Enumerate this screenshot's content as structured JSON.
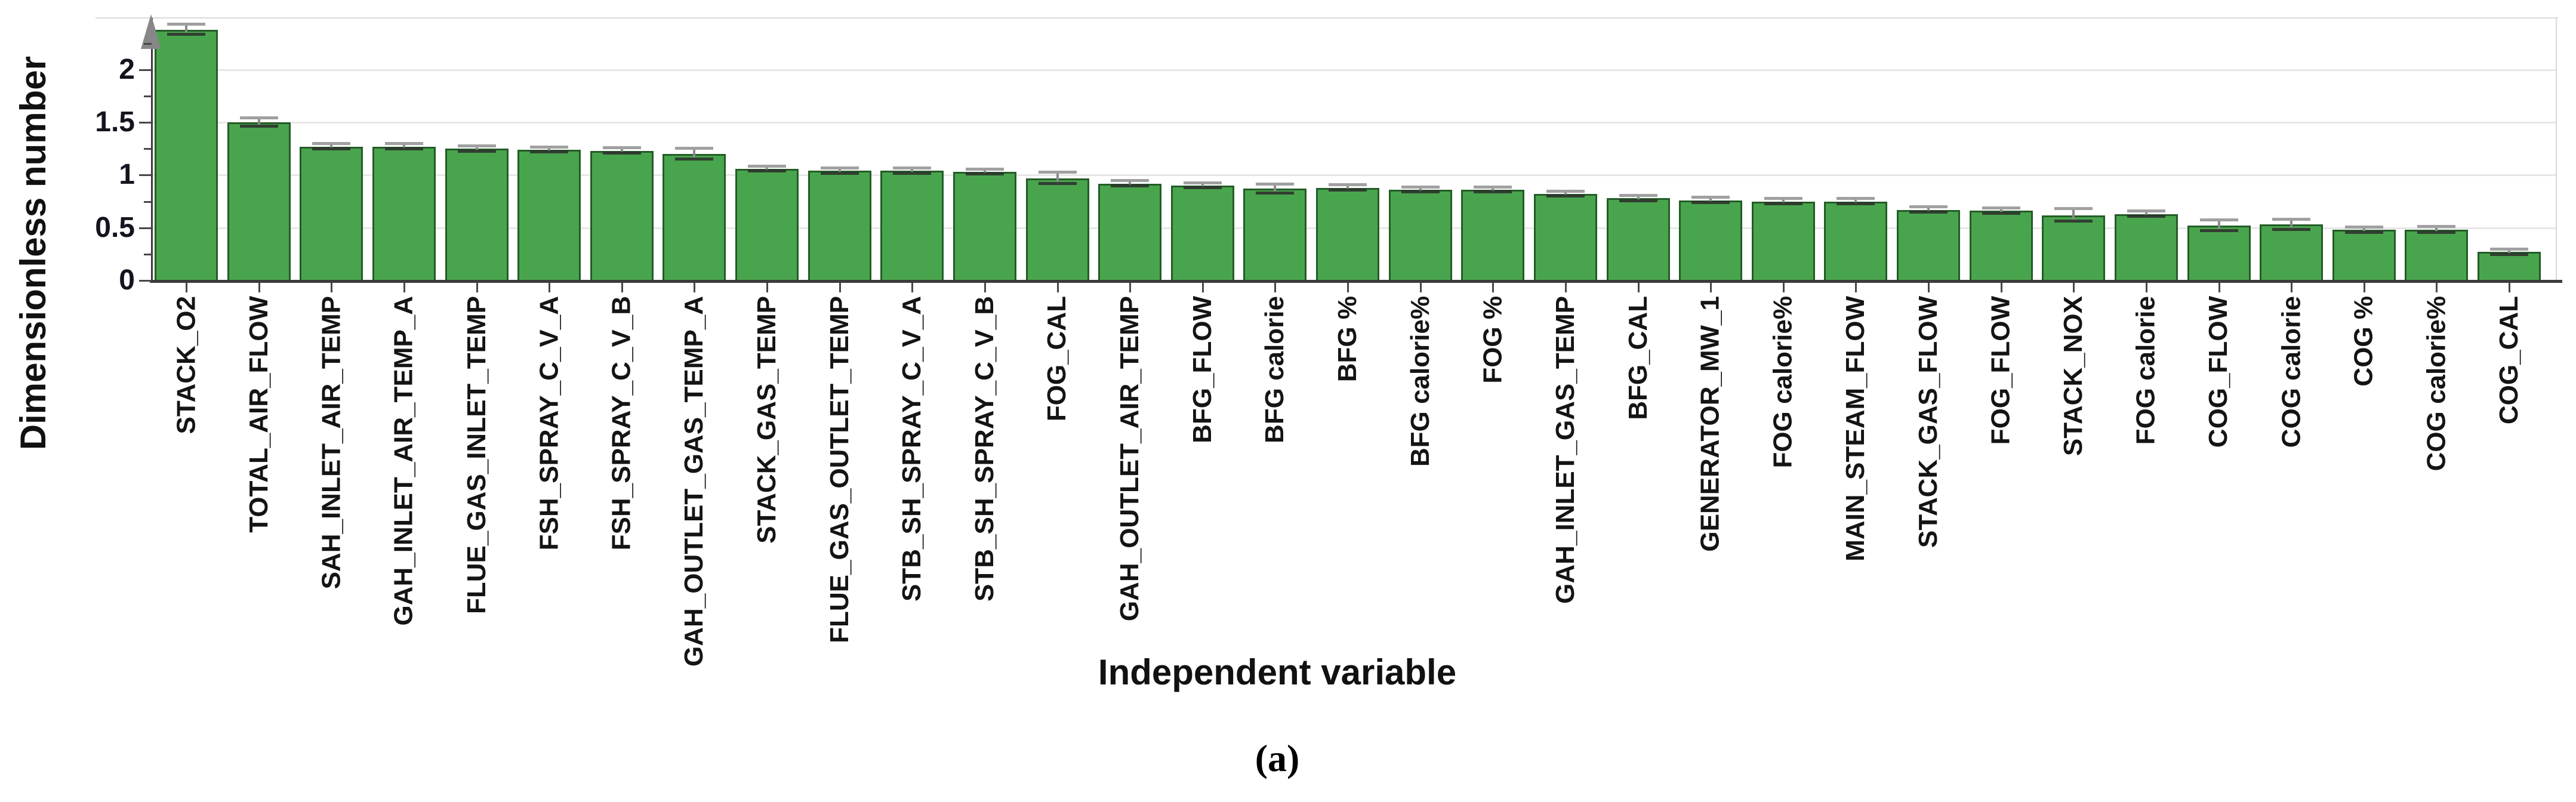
{
  "chart_data": {
    "type": "bar",
    "title": "",
    "xlabel": "Independent variable",
    "ylabel": "Dimensionless number",
    "caption": "(a)",
    "ylim": [
      0,
      2.45
    ],
    "yticks": [
      0,
      0.5,
      1,
      1.5,
      2
    ],
    "ytick_labels": [
      "0",
      "0.5",
      "1",
      "1.5",
      "2"
    ],
    "minor_yticks": [
      0.25,
      0.75,
      1.25,
      1.75,
      2.25
    ],
    "grid": true,
    "legend_position": "none",
    "categories": [
      "STACK_O2",
      "TOTAL_AIR_FLOW",
      "SAH_INLET_AIR_TEMP",
      "GAH_INLET_AIR_TEMP_A",
      "FLUE_GAS_INLET_TEMP",
      "FSH_SPRAY_C_V_A",
      "FSH_SPRAY_C_V_B",
      "GAH_OUTLET_GAS_TEMP_A",
      "STACK_GAS_TEMP",
      "FLUE_GAS_OUTLET_TEMP",
      "STB_SH_SPRAY_C_V_A",
      "STB_SH_SPRAY_C_V_B",
      "FOG_CAL",
      "GAH_OUTLET_AIR_TEMP",
      "BFG_FLOW",
      "BFG calorie",
      "BFG %",
      "BFG calorie%",
      "FOG %",
      "GAH_INLET_GAS_TEMP",
      "BFG_CAL",
      "GENERATOR_MW_1",
      "FOG calorie%",
      "MAIN_STEAM_FLOW",
      "STACK_GAS_FLOW",
      "FOG_FLOW",
      "STACK_NOX",
      "FOG calorie",
      "COG_FLOW",
      "COG calorie",
      "COG %",
      "COG calorie%",
      "COG_CAL"
    ],
    "values": [
      2.38,
      1.5,
      1.27,
      1.27,
      1.25,
      1.24,
      1.23,
      1.2,
      1.06,
      1.04,
      1.04,
      1.03,
      0.97,
      0.92,
      0.9,
      0.87,
      0.88,
      0.86,
      0.86,
      0.82,
      0.78,
      0.76,
      0.75,
      0.75,
      0.67,
      0.66,
      0.62,
      0.63,
      0.52,
      0.53,
      0.48,
      0.48,
      0.27
    ],
    "errors": [
      0.055,
      0.045,
      0.03,
      0.03,
      0.03,
      0.03,
      0.03,
      0.055,
      0.03,
      0.03,
      0.03,
      0.03,
      0.06,
      0.03,
      0.03,
      0.05,
      0.03,
      0.03,
      0.03,
      0.03,
      0.03,
      0.03,
      0.03,
      0.03,
      0.03,
      0.03,
      0.065,
      0.03,
      0.055,
      0.055,
      0.03,
      0.035,
      0.03
    ],
    "colors": {
      "bar_fill": "#49a54d",
      "bar_border": "#235c26",
      "grid": "#e7e7e7",
      "axis": "#3b3b3b",
      "tick": "#474747",
      "tick_label": "#14141f",
      "category_label": "#141414",
      "error_whisker": "#8a8a8a",
      "error_cap_upper": "#a0a0a0",
      "error_cap_lower": "#2d2d2d",
      "frame": "#d9d9d9",
      "axis_arrow": "#878787",
      "background": "#ffffff"
    }
  }
}
